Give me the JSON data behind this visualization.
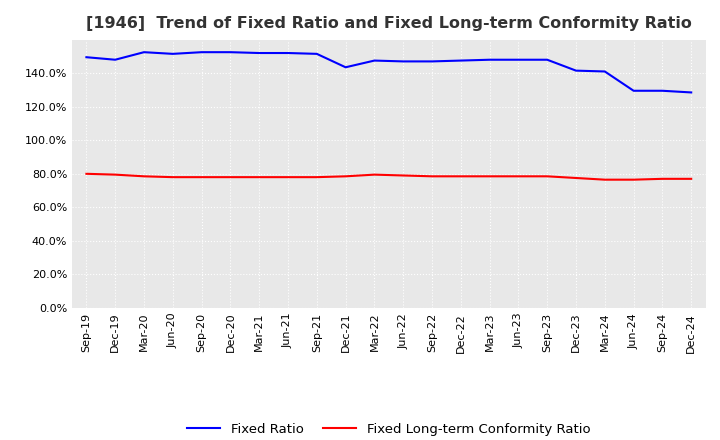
{
  "title": "[1946]  Trend of Fixed Ratio and Fixed Long-term Conformity Ratio",
  "x_labels": [
    "Sep-19",
    "Dec-19",
    "Mar-20",
    "Jun-20",
    "Sep-20",
    "Dec-20",
    "Mar-21",
    "Jun-21",
    "Sep-21",
    "Dec-21",
    "Mar-22",
    "Jun-22",
    "Sep-22",
    "Dec-22",
    "Mar-23",
    "Jun-23",
    "Sep-23",
    "Dec-23",
    "Mar-24",
    "Jun-24",
    "Sep-24",
    "Dec-24"
  ],
  "fixed_ratio": [
    149.5,
    148.0,
    152.5,
    151.5,
    152.5,
    152.5,
    152.0,
    152.0,
    151.5,
    143.5,
    147.5,
    147.0,
    147.0,
    147.5,
    148.0,
    148.0,
    148.0,
    141.5,
    141.0,
    129.5,
    129.5,
    128.5
  ],
  "fixed_lt_ratio": [
    80.0,
    79.5,
    78.5,
    78.0,
    78.0,
    78.0,
    78.0,
    78.0,
    78.0,
    78.5,
    79.5,
    79.0,
    78.5,
    78.5,
    78.5,
    78.5,
    78.5,
    77.5,
    76.5,
    76.5,
    77.0,
    77.0
  ],
  "fixed_ratio_color": "#0000ff",
  "fixed_lt_ratio_color": "#ff0000",
  "ylim": [
    0,
    160
  ],
  "yticks": [
    0,
    20,
    40,
    60,
    80,
    100,
    120,
    140
  ],
  "ytick_labels": [
    "0.0%",
    "20.0%",
    "40.0%",
    "60.0%",
    "80.0%",
    "100.0%",
    "120.0%",
    "140.0%"
  ],
  "plot_bg_color": "#e8e8e8",
  "fig_bg_color": "#ffffff",
  "grid_color": "#ffffff",
  "legend_fixed_ratio": "Fixed Ratio",
  "legend_fixed_lt_ratio": "Fixed Long-term Conformity Ratio",
  "title_fontsize": 11.5,
  "tick_fontsize": 8,
  "legend_fontsize": 9.5
}
